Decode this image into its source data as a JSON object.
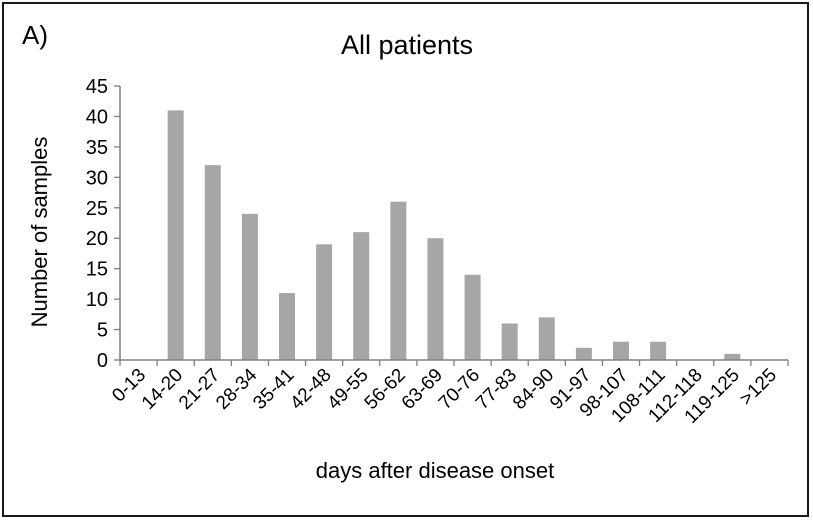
{
  "panel_label": "A)",
  "chart_data": {
    "type": "bar",
    "title": "All patients",
    "xlabel": "days after disease onset",
    "ylabel": "Number of samples",
    "ylim": [
      0,
      45
    ],
    "yticks": [
      0,
      5,
      10,
      15,
      20,
      25,
      30,
      35,
      40,
      45
    ],
    "grid": false,
    "legend": "none",
    "categories": [
      "0-13",
      "14-20",
      "21-27",
      "28-34",
      "35-41",
      "42-48",
      "49-55",
      "56-62",
      "63-69",
      "70-76",
      "77-83",
      "84-90",
      "91-97",
      "98-107",
      "108-111",
      "112-118",
      "119-125",
      ">125"
    ],
    "values": [
      0,
      41,
      32,
      24,
      11,
      19,
      21,
      26,
      20,
      14,
      6,
      7,
      2,
      3,
      3,
      0,
      1,
      0
    ],
    "bar_color": "#a6a6a6",
    "axis_color": "#808080"
  }
}
